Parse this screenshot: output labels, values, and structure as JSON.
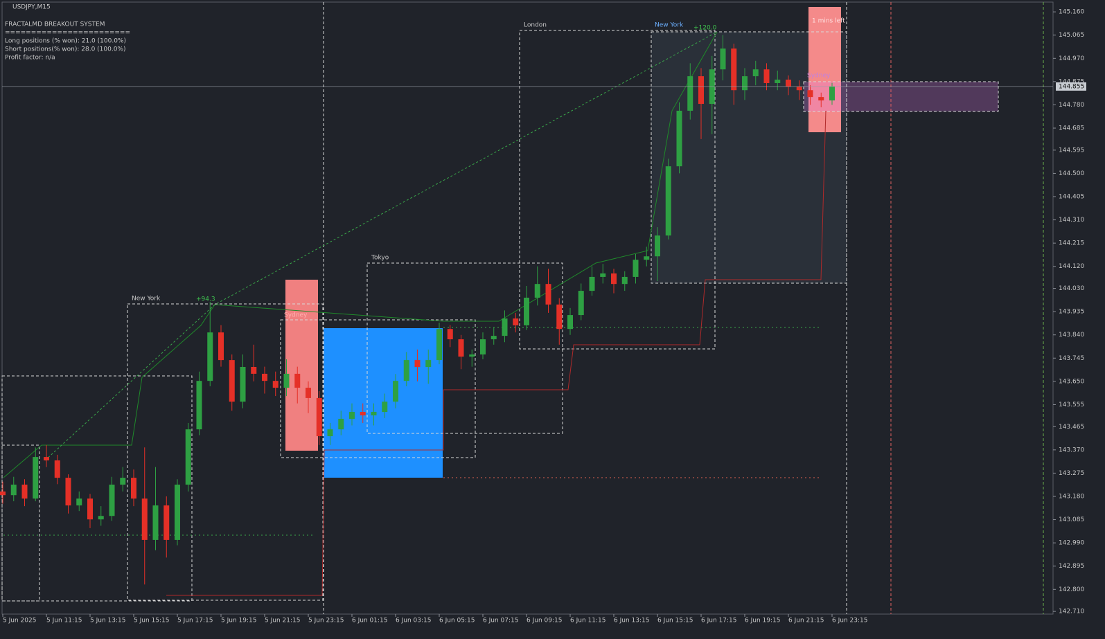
{
  "chart_data": {
    "type": "candlestick",
    "title": "USDJPY,M15",
    "info_lines": [
      "FRACTALMD BREAKOUT SYSTEM",
      "========================",
      "Long positions (% won): 21.0 (100.0%)",
      "Short positions(% won): 28.0 (100.0%)",
      "Profit factor: n/a"
    ],
    "annotations": [
      "New York",
      "Sydney",
      "Tokyo",
      "London",
      "New York",
      "Sydney",
      "+94.3",
      "+120.0",
      "1 mins left"
    ],
    "current_price": {
      "value": 144.855,
      "label": "144.855"
    },
    "up_color": "#2ea043",
    "down_color": "#e53027",
    "ylim": [
      142.699,
      145.2
    ],
    "yticks": [
      {
        "value": 145.16,
        "label": "145.160"
      },
      {
        "value": 145.065,
        "label": "145.065"
      },
      {
        "value": 144.97,
        "label": "144.970"
      },
      {
        "value": 144.875,
        "label": "144.875"
      },
      {
        "value": 144.78,
        "label": "144.780"
      },
      {
        "value": 144.685,
        "label": "144.685"
      },
      {
        "value": 144.595,
        "label": "144.595"
      },
      {
        "value": 144.5,
        "label": "144.500"
      },
      {
        "value": 144.405,
        "label": "144.405"
      },
      {
        "value": 144.31,
        "label": "144.310"
      },
      {
        "value": 144.215,
        "label": "144.215"
      },
      {
        "value": 144.12,
        "label": "144.120"
      },
      {
        "value": 144.03,
        "label": "144.030"
      },
      {
        "value": 143.935,
        "label": "143.935"
      },
      {
        "value": 143.84,
        "label": "143.840"
      },
      {
        "value": 143.745,
        "label": "143.745"
      },
      {
        "value": 143.65,
        "label": "143.650"
      },
      {
        "value": 143.555,
        "label": "143.555"
      },
      {
        "value": 143.465,
        "label": "143.465"
      },
      {
        "value": 143.37,
        "label": "143.370"
      },
      {
        "value": 143.275,
        "label": "143.275"
      },
      {
        "value": 143.18,
        "label": "143.180"
      },
      {
        "value": 143.085,
        "label": "143.085"
      },
      {
        "value": 142.99,
        "label": "142.990"
      },
      {
        "value": 142.895,
        "label": "142.895"
      },
      {
        "value": 142.8,
        "label": "142.800"
      },
      {
        "value": 142.71,
        "label": "142.710"
      }
    ],
    "categories": [
      "5 Jun 2025",
      null,
      null,
      null,
      "5 Jun 11:15",
      null,
      null,
      null,
      "5 Jun 13:15",
      null,
      null,
      null,
      "5 Jun 15:15",
      null,
      null,
      null,
      "5 Jun 17:15",
      null,
      null,
      null,
      "5 Jun 19:15",
      null,
      null,
      null,
      "5 Jun 21:15",
      null,
      null,
      null,
      "5 Jun 23:15",
      null,
      null,
      null,
      "6 Jun 01:15",
      null,
      null,
      null,
      "6 Jun 03:15",
      null,
      null,
      null,
      "6 Jun 05:15",
      null,
      null,
      null,
      "6 Jun 07:15",
      null,
      null,
      null,
      "6 Jun 09:15",
      null,
      null,
      null,
      "6 Jun 11:15",
      null,
      null,
      null,
      "6 Jun 13:15",
      null,
      null,
      null,
      "6 Jun 15:15",
      null,
      null,
      null,
      "6 Jun 17:15",
      null,
      null,
      null,
      "6 Jun 19:15",
      null,
      null,
      null,
      "6 Jun 21:15",
      null,
      null,
      null,
      "6 Jun 23:15"
    ],
    "open": [
      143.2,
      143.185,
      143.228,
      143.171,
      143.341,
      143.327,
      143.256,
      143.143,
      143.171,
      143.086,
      143.1,
      143.228,
      143.256,
      143.171,
      143.002,
      143.143,
      143.002,
      143.228,
      143.454,
      143.652,
      143.85,
      143.737,
      143.567,
      143.709,
      143.681,
      143.652,
      143.624,
      143.681,
      143.624,
      143.582,
      143.426,
      143.454,
      143.497,
      143.525,
      143.511,
      143.525,
      143.567,
      143.652,
      143.737,
      143.709,
      143.737,
      143.864,
      143.822,
      143.751,
      143.76,
      143.822,
      143.836,
      143.907,
      143.879,
      143.992,
      144.048,
      143.964,
      143.864,
      143.921,
      144.02,
      144.077,
      144.091,
      144.048,
      144.077,
      144.147,
      144.161,
      144.246,
      144.529,
      144.756,
      144.897,
      144.784,
      144.925,
      145.01,
      144.84,
      144.897,
      144.925,
      144.869,
      144.883,
      144.854,
      144.84,
      144.812,
      144.798
    ],
    "high": [
      143.24,
      143.26,
      143.25,
      143.38,
      143.39,
      143.35,
      143.27,
      143.2,
      143.19,
      143.14,
      143.26,
      143.3,
      143.29,
      143.38,
      143.3,
      143.18,
      143.25,
      143.48,
      143.69,
      143.975,
      143.88,
      143.76,
      143.76,
      143.8,
      143.71,
      143.69,
      143.74,
      143.71,
      143.65,
      143.61,
      143.48,
      143.53,
      143.56,
      143.56,
      143.56,
      143.6,
      143.68,
      143.77,
      143.78,
      143.78,
      143.89,
      143.88,
      143.84,
      143.78,
      143.85,
      143.87,
      143.94,
      143.93,
      144.04,
      144.12,
      144.11,
      143.99,
      143.95,
      144.05,
      144.12,
      144.13,
      144.11,
      144.1,
      144.17,
      144.2,
      144.28,
      144.56,
      144.79,
      144.95,
      144.93,
      144.98,
      145.065,
      145.03,
      144.93,
      144.96,
      144.95,
      144.92,
      144.9,
      144.88,
      144.86,
      144.83,
      144.87
    ],
    "low": [
      143.15,
      143.16,
      143.14,
      143.16,
      143.3,
      143.23,
      143.11,
      143.12,
      143.05,
      143.06,
      143.08,
      143.2,
      143.14,
      142.82,
      142.96,
      142.93,
      142.98,
      143.2,
      143.43,
      143.63,
      143.71,
      143.53,
      143.54,
      143.65,
      143.6,
      143.59,
      143.59,
      143.56,
      143.52,
      143.39,
      143.39,
      143.43,
      143.47,
      143.48,
      143.47,
      143.5,
      143.54,
      143.63,
      143.65,
      143.64,
      143.72,
      143.79,
      143.7,
      143.71,
      143.74,
      143.8,
      143.81,
      143.85,
      143.86,
      143.96,
      143.93,
      143.8,
      143.84,
      143.9,
      144.0,
      144.05,
      144.01,
      144.02,
      144.05,
      144.12,
      144.06,
      144.23,
      144.5,
      144.72,
      144.64,
      144.66,
      144.88,
      144.78,
      144.8,
      144.86,
      144.84,
      144.84,
      144.82,
      144.8,
      144.78,
      144.77,
      144.78
    ],
    "close": [
      143.185,
      143.228,
      143.171,
      143.341,
      143.327,
      143.256,
      143.143,
      143.171,
      143.086,
      143.1,
      143.228,
      143.256,
      143.171,
      143.002,
      143.143,
      143.002,
      143.228,
      143.454,
      143.652,
      143.85,
      143.737,
      143.567,
      143.709,
      143.681,
      143.652,
      143.624,
      143.681,
      143.624,
      143.582,
      143.426,
      143.454,
      143.497,
      143.525,
      143.511,
      143.525,
      143.567,
      143.652,
      143.737,
      143.709,
      143.737,
      143.864,
      143.822,
      143.751,
      143.76,
      143.822,
      143.836,
      143.907,
      143.879,
      143.992,
      144.048,
      143.964,
      143.864,
      143.921,
      144.02,
      144.077,
      144.091,
      144.048,
      144.077,
      144.147,
      144.161,
      144.246,
      144.529,
      144.756,
      144.897,
      144.784,
      144.925,
      145.01,
      144.84,
      144.897,
      144.925,
      144.869,
      144.883,
      144.854,
      144.84,
      144.812,
      144.798,
      144.855
    ]
  }
}
